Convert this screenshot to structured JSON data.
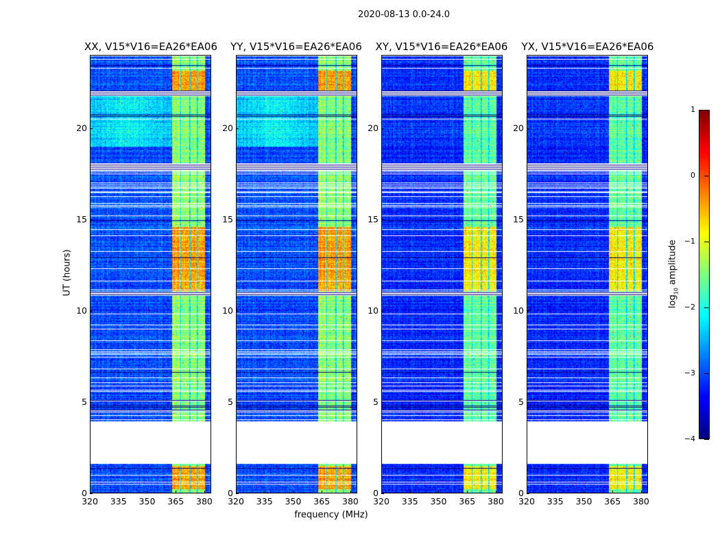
{
  "suptitle": "2020-08-13 0.0-24.0",
  "chart_data": {
    "type": "heatmap",
    "title": "2020-08-13 0.0-24.0",
    "xlabel": "frequency (MHz)",
    "ylabel": "UT (hours)",
    "xlim": [
      320,
      383.6
    ],
    "ylim": [
      0,
      24
    ],
    "xticks": [
      "320",
      "335",
      "350",
      "365",
      "380"
    ],
    "xtick_values": [
      320,
      335,
      350,
      365,
      380
    ],
    "yticks": [
      "0",
      "5",
      "10",
      "15",
      "20"
    ],
    "ytick_values": [
      0,
      5,
      10,
      15,
      20
    ],
    "colorbar": {
      "label_main": "log",
      "label_sub": "10",
      "label_rest": " amplitude",
      "range": [
        -4,
        1
      ],
      "ticks": [
        "1",
        "0",
        "−1",
        "−2",
        "−3",
        "−4"
      ],
      "tick_values": [
        1,
        0,
        -1,
        -2,
        -3,
        -4
      ],
      "colormap": "jet"
    },
    "missing_time_ranges_hours": [
      [
        1.6,
        3.9
      ]
    ],
    "flagged_time_bands_hours": [
      [
        21.8,
        22.1
      ],
      [
        10.85,
        11.05
      ],
      [
        17.7,
        18.1
      ]
    ],
    "rfi_band_mhz": [
      363,
      381
    ],
    "band_dividers_mhz": [
      367.6,
      372.4,
      376.6
    ],
    "strong_time_ranges_hours": [
      [
        11.1,
        14.6
      ],
      [
        22.1,
        23.2
      ],
      [
        0.2,
        1.5
      ]
    ],
    "panels": [
      {
        "title": "XX, V15*V16=EA26*EA06",
        "background_log_amp": -3.0,
        "quiet_19_22_log_amp": -2.4,
        "band_log_amp": -1.4,
        "strong_log_amp": -0.4
      },
      {
        "title": "YY, V15*V16=EA26*EA06",
        "background_log_amp": -3.0,
        "quiet_19_22_log_amp": -2.4,
        "band_log_amp": -1.4,
        "strong_log_amp": -0.4
      },
      {
        "title": "XY, V15*V16=EA26*EA06",
        "background_log_amp": -3.2,
        "quiet_19_22_log_amp": -3.1,
        "band_log_amp": -1.6,
        "strong_log_amp": -0.8
      },
      {
        "title": "YX, V15*V16=EA26*EA06",
        "background_log_amp": -3.2,
        "quiet_19_22_log_amp": -3.1,
        "band_log_amp": -1.6,
        "strong_log_amp": -0.8
      }
    ]
  }
}
